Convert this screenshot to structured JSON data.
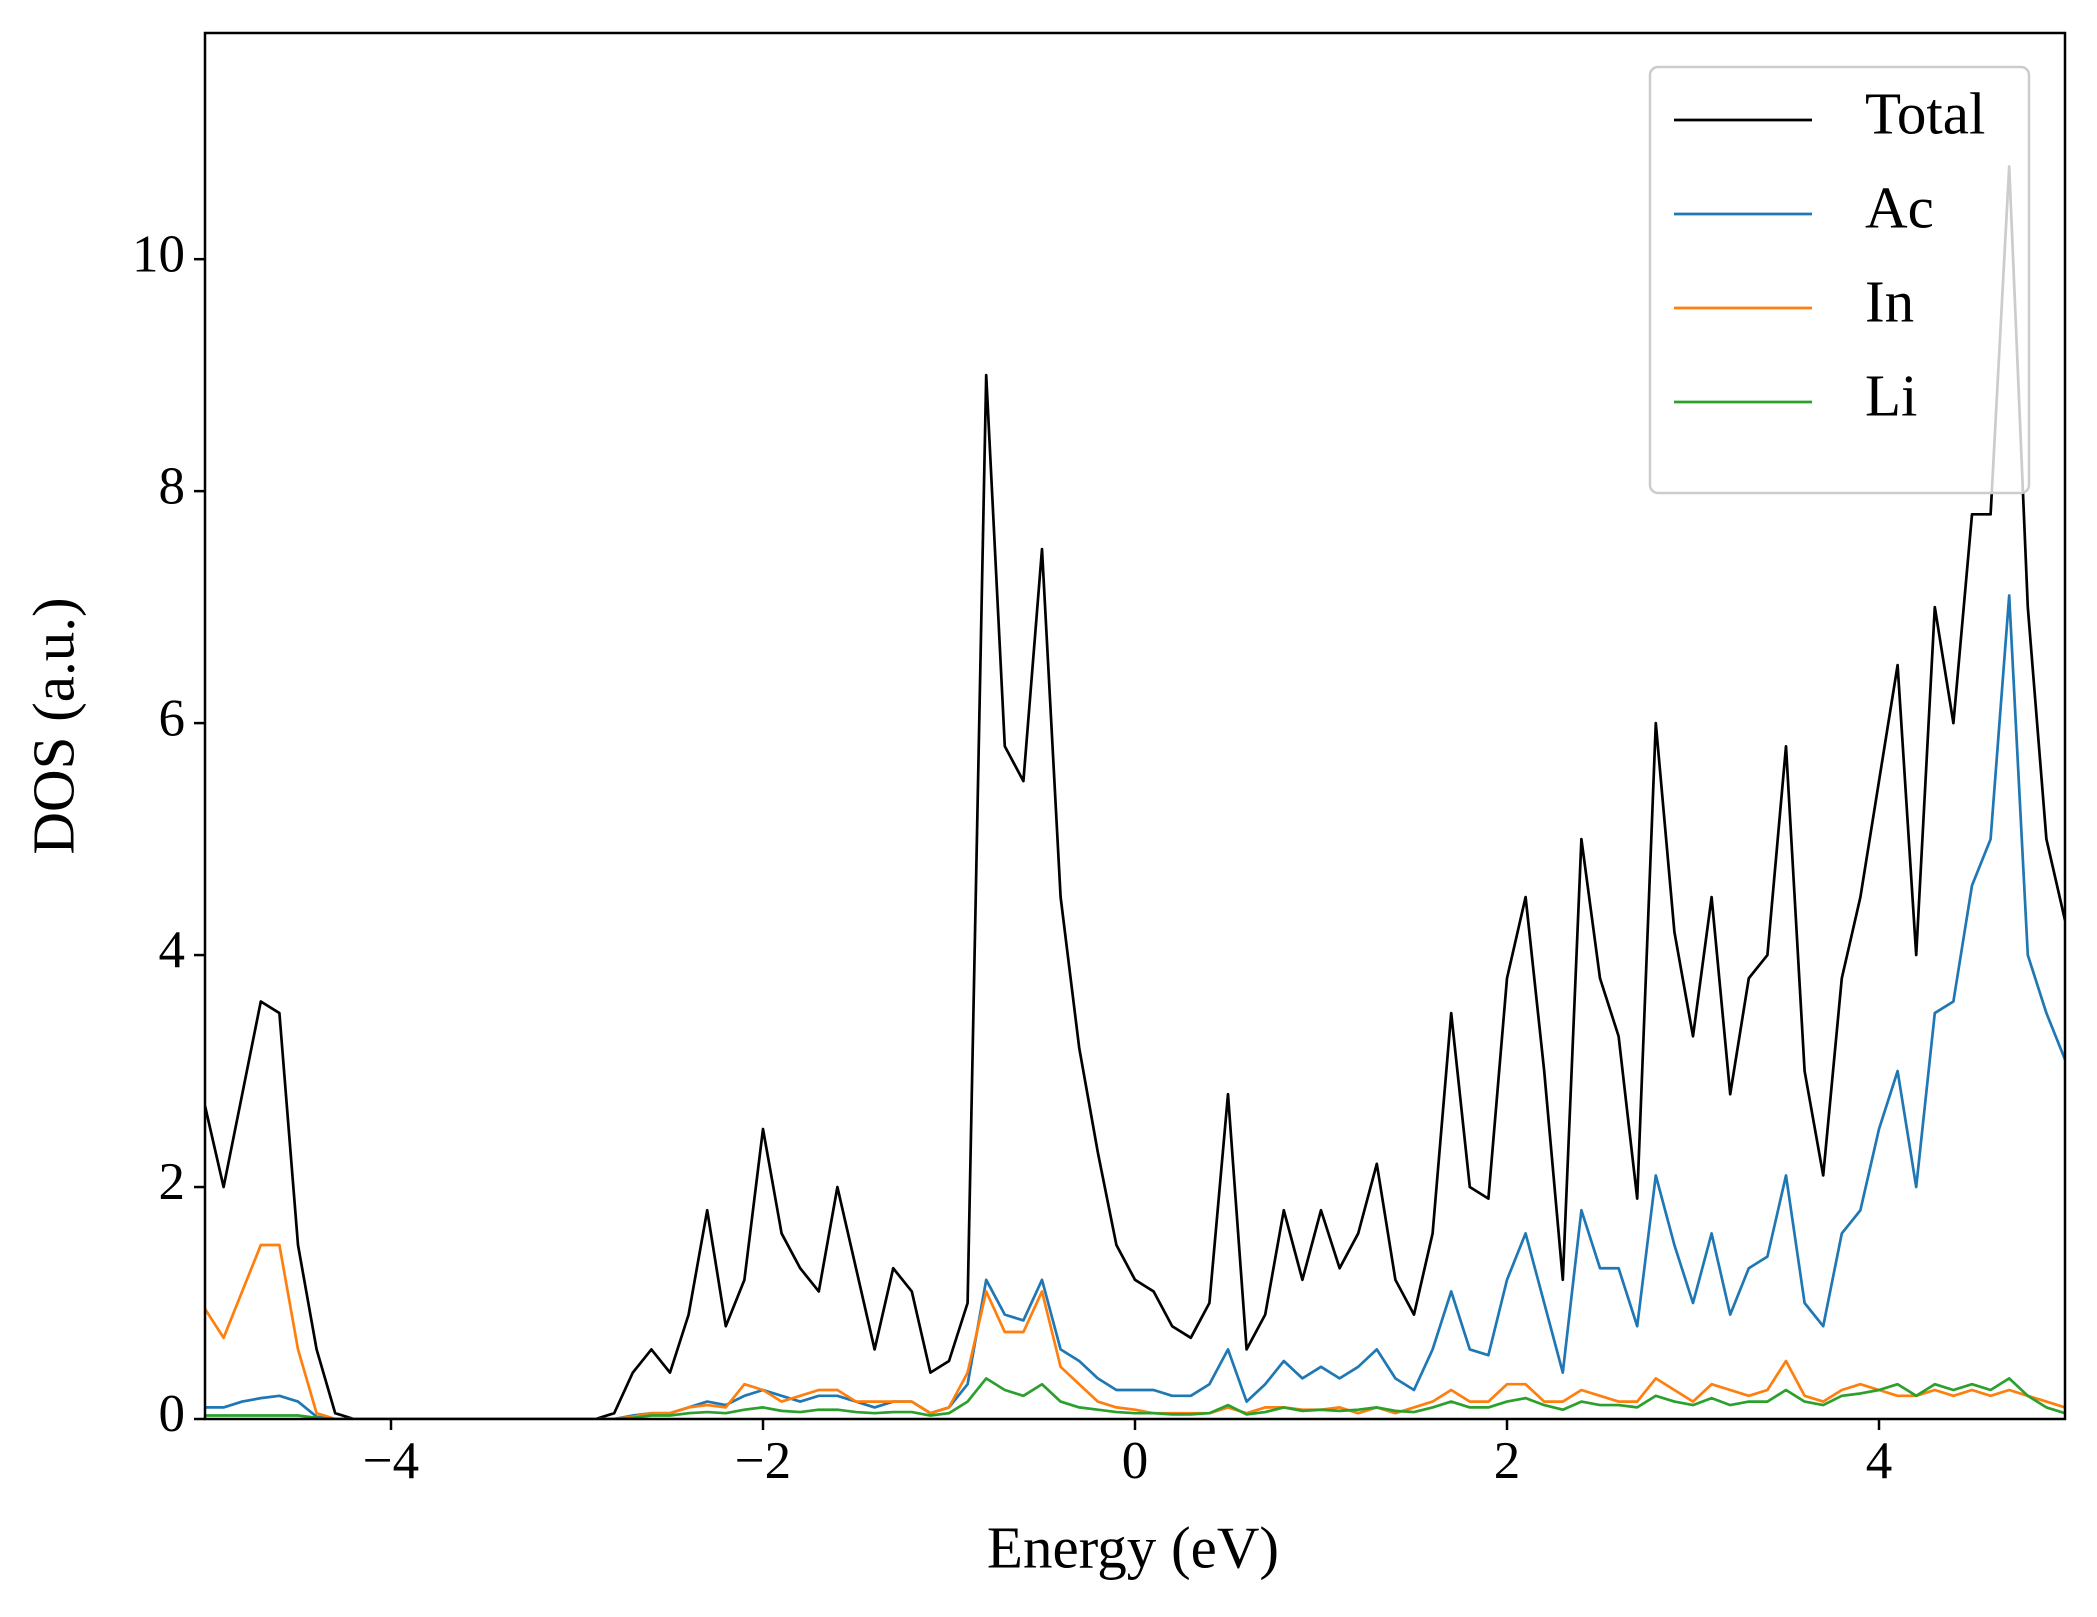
{
  "chart_data": {
    "type": "line",
    "xlabel": "Energy (eV)",
    "ylabel": "DOS (a.u.)",
    "xlim": [
      -5,
      5
    ],
    "ylim": [
      0,
      11.95
    ],
    "xticks": [
      {
        "value": -4,
        "label": "−4"
      },
      {
        "value": -2,
        "label": "−2"
      },
      0,
      2,
      4
    ],
    "yticks": [
      0,
      2,
      4,
      6,
      8,
      10
    ],
    "legend": "upper right",
    "x": [
      -5.0,
      -4.9,
      -4.8,
      -4.7,
      -4.6,
      -4.5,
      -4.4,
      -4.3,
      -4.2,
      -4.1,
      -4.0,
      -3.9,
      -3.8,
      -3.7,
      -3.6,
      -3.5,
      -3.4,
      -3.3,
      -3.2,
      -3.1,
      -3.0,
      -2.9,
      -2.8,
      -2.7,
      -2.6,
      -2.5,
      -2.4,
      -2.3,
      -2.2,
      -2.1,
      -2.0,
      -1.9,
      -1.8,
      -1.7,
      -1.6,
      -1.5,
      -1.4,
      -1.3,
      -1.2,
      -1.1,
      -1.0,
      -0.9,
      -0.8,
      -0.7,
      -0.6,
      -0.5,
      -0.4,
      -0.3,
      -0.2,
      -0.1,
      0.0,
      0.1,
      0.2,
      0.3,
      0.4,
      0.5,
      0.6,
      0.7,
      0.8,
      0.9,
      1.0,
      1.1,
      1.2,
      1.3,
      1.4,
      1.5,
      1.6,
      1.7,
      1.8,
      1.9,
      2.0,
      2.1,
      2.2,
      2.3,
      2.4,
      2.5,
      2.6,
      2.7,
      2.8,
      2.9,
      3.0,
      3.1,
      3.2,
      3.3,
      3.4,
      3.5,
      3.6,
      3.7,
      3.8,
      3.9,
      4.0,
      4.1,
      4.2,
      4.3,
      4.4,
      4.5,
      4.6,
      4.7,
      4.8,
      4.9,
      5.0
    ],
    "series": [
      {
        "name": "Total",
        "color": "#000000",
        "values": [
          2.7,
          2.0,
          2.8,
          3.6,
          3.5,
          1.5,
          0.6,
          0.05,
          0,
          0,
          0,
          0,
          0,
          0,
          0,
          0,
          0,
          0,
          0,
          0,
          0,
          0,
          0.05,
          0.4,
          0.6,
          0.4,
          0.9,
          1.8,
          0.8,
          1.2,
          2.5,
          1.6,
          1.3,
          1.1,
          2.0,
          1.3,
          0.6,
          1.3,
          1.1,
          0.4,
          0.5,
          1.0,
          9.0,
          5.8,
          5.5,
          7.5,
          4.5,
          3.2,
          2.3,
          1.5,
          1.2,
          1.1,
          0.8,
          0.7,
          1.0,
          2.8,
          0.6,
          0.9,
          1.8,
          1.2,
          1.8,
          1.3,
          1.6,
          2.2,
          1.2,
          0.9,
          1.6,
          3.5,
          2.0,
          1.9,
          3.8,
          4.5,
          3.0,
          1.2,
          5.0,
          3.8,
          3.3,
          1.9,
          6.0,
          4.2,
          3.3,
          4.5,
          2.8,
          3.8,
          4.0,
          5.8,
          3.0,
          2.1,
          3.8,
          4.5,
          5.5,
          6.5,
          4.0,
          7.0,
          6.0,
          7.8,
          7.8,
          10.8,
          7.0,
          5.0,
          4.3
        ]
      },
      {
        "name": "Ac",
        "color": "#1f77b4",
        "values": [
          0.1,
          0.1,
          0.15,
          0.18,
          0.2,
          0.15,
          0.02,
          0,
          0,
          0,
          0,
          0,
          0,
          0,
          0,
          0,
          0,
          0,
          0,
          0,
          0,
          0,
          0,
          0.03,
          0.05,
          0.05,
          0.1,
          0.15,
          0.12,
          0.2,
          0.25,
          0.2,
          0.15,
          0.2,
          0.2,
          0.15,
          0.1,
          0.15,
          0.15,
          0.05,
          0.1,
          0.3,
          1.2,
          0.9,
          0.85,
          1.2,
          0.6,
          0.5,
          0.35,
          0.25,
          0.25,
          0.25,
          0.2,
          0.2,
          0.3,
          0.6,
          0.15,
          0.3,
          0.5,
          0.35,
          0.45,
          0.35,
          0.45,
          0.6,
          0.35,
          0.25,
          0.6,
          1.1,
          0.6,
          0.55,
          1.2,
          1.6,
          1.0,
          0.4,
          1.8,
          1.3,
          1.3,
          0.8,
          2.1,
          1.5,
          1.0,
          1.6,
          0.9,
          1.3,
          1.4,
          2.1,
          1.0,
          0.8,
          1.6,
          1.8,
          2.5,
          3.0,
          2.0,
          3.5,
          3.6,
          4.6,
          5.0,
          7.1,
          4.0,
          3.5,
          3.1
        ]
      },
      {
        "name": "In",
        "color": "#ff7f0e",
        "values": [
          0.95,
          0.7,
          1.1,
          1.5,
          1.5,
          0.6,
          0.05,
          0,
          0,
          0,
          0,
          0,
          0,
          0,
          0,
          0,
          0,
          0,
          0,
          0,
          0,
          0,
          0,
          0.02,
          0.05,
          0.05,
          0.1,
          0.12,
          0.1,
          0.3,
          0.25,
          0.15,
          0.2,
          0.25,
          0.25,
          0.15,
          0.15,
          0.15,
          0.15,
          0.05,
          0.1,
          0.4,
          1.1,
          0.75,
          0.75,
          1.1,
          0.45,
          0.3,
          0.15,
          0.1,
          0.08,
          0.05,
          0.05,
          0.05,
          0.05,
          0.1,
          0.05,
          0.1,
          0.1,
          0.08,
          0.08,
          0.1,
          0.05,
          0.1,
          0.05,
          0.1,
          0.15,
          0.25,
          0.15,
          0.15,
          0.3,
          0.3,
          0.15,
          0.15,
          0.25,
          0.2,
          0.15,
          0.15,
          0.35,
          0.25,
          0.15,
          0.3,
          0.25,
          0.2,
          0.25,
          0.5,
          0.2,
          0.15,
          0.25,
          0.3,
          0.25,
          0.2,
          0.2,
          0.25,
          0.2,
          0.25,
          0.2,
          0.25,
          0.2,
          0.15,
          0.1
        ]
      },
      {
        "name": "Li",
        "color": "#2ca02c",
        "values": [
          0.03,
          0.03,
          0.03,
          0.03,
          0.03,
          0.03,
          0.01,
          0,
          0,
          0,
          0,
          0,
          0,
          0,
          0,
          0,
          0,
          0,
          0,
          0,
          0,
          0,
          0,
          0.01,
          0.03,
          0.03,
          0.05,
          0.06,
          0.05,
          0.08,
          0.1,
          0.07,
          0.06,
          0.08,
          0.08,
          0.06,
          0.05,
          0.06,
          0.06,
          0.03,
          0.05,
          0.15,
          0.35,
          0.25,
          0.2,
          0.3,
          0.15,
          0.1,
          0.08,
          0.06,
          0.05,
          0.05,
          0.04,
          0.04,
          0.05,
          0.12,
          0.04,
          0.06,
          0.1,
          0.07,
          0.08,
          0.07,
          0.08,
          0.1,
          0.07,
          0.06,
          0.1,
          0.15,
          0.1,
          0.1,
          0.15,
          0.18,
          0.12,
          0.08,
          0.15,
          0.12,
          0.12,
          0.1,
          0.2,
          0.15,
          0.12,
          0.18,
          0.12,
          0.15,
          0.15,
          0.25,
          0.15,
          0.12,
          0.2,
          0.22,
          0.25,
          0.3,
          0.2,
          0.3,
          0.25,
          0.3,
          0.25,
          0.35,
          0.2,
          0.1,
          0.05
        ]
      }
    ]
  }
}
